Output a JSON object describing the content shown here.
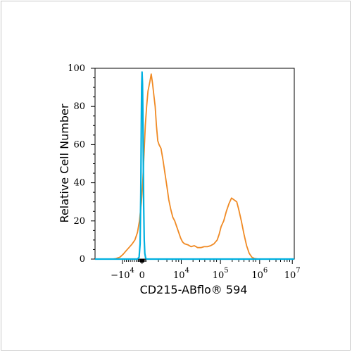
{
  "chart_data": {
    "type": "line",
    "title": "",
    "xlabel": "CD215-ABflo® 594",
    "ylabel": "Relative Cell Number",
    "ylim": [
      0,
      100
    ],
    "xscale": "biexponential",
    "y_ticks": [
      {
        "label": "100",
        "value": 100
      },
      {
        "label": "80",
        "value": 80
      },
      {
        "label": "60",
        "value": 60
      },
      {
        "label": "40",
        "value": 40
      },
      {
        "label": "20",
        "value": 20
      },
      {
        "label": "0",
        "value": 0
      }
    ],
    "x_ticks": [
      {
        "base": "−10",
        "exp": "4",
        "pos": -0.3
      },
      {
        "base": "0",
        "exp": "",
        "pos": 0.0
      },
      {
        "base": "10",
        "exp": "4",
        "pos": 0.6
      },
      {
        "base": "10",
        "exp": "5",
        "pos": 1.2
      },
      {
        "base": "10",
        "exp": "6",
        "pos": 1.8
      },
      {
        "base": "10",
        "exp": "7",
        "pos": 2.3
      }
    ],
    "xlim": [
      -0.72,
      2.33
    ],
    "legend": "none",
    "grid": false,
    "series": [
      {
        "color": "#00b0e0",
        "points": [
          [
            -0.72,
            0
          ],
          [
            -0.07,
            0
          ],
          [
            -0.045,
            1
          ],
          [
            -0.03,
            8
          ],
          [
            -0.02,
            35
          ],
          [
            -0.012,
            70
          ],
          [
            -0.006,
            90
          ],
          [
            0.0,
            98
          ],
          [
            0.006,
            92
          ],
          [
            0.012,
            78
          ],
          [
            0.018,
            55
          ],
          [
            0.025,
            28
          ],
          [
            0.033,
            10
          ],
          [
            0.042,
            3
          ],
          [
            0.055,
            0.5
          ],
          [
            0.07,
            0
          ],
          [
            2.33,
            0
          ]
        ]
      },
      {
        "color": "#f08a24",
        "points": [
          [
            -0.72,
            0
          ],
          [
            -0.45,
            0
          ],
          [
            -0.4,
            0.3
          ],
          [
            -0.34,
            1
          ],
          [
            -0.29,
            2.5
          ],
          [
            -0.24,
            4.5
          ],
          [
            -0.2,
            6
          ],
          [
            -0.15,
            8
          ],
          [
            -0.11,
            10
          ],
          [
            -0.07,
            14
          ],
          [
            -0.04,
            20
          ],
          [
            -0.01,
            30
          ],
          [
            0.01,
            40
          ],
          [
            0.03,
            55
          ],
          [
            0.05,
            70
          ],
          [
            0.07,
            80
          ],
          [
            0.09,
            88
          ],
          [
            0.12,
            93
          ],
          [
            0.14,
            97
          ],
          [
            0.16,
            92
          ],
          [
            0.18,
            86
          ],
          [
            0.2,
            80
          ],
          [
            0.22,
            70
          ],
          [
            0.24,
            62
          ],
          [
            0.26,
            60
          ],
          [
            0.29,
            58
          ],
          [
            0.32,
            52
          ],
          [
            0.35,
            45
          ],
          [
            0.38,
            38
          ],
          [
            0.41,
            31
          ],
          [
            0.44,
            26
          ],
          [
            0.47,
            22
          ],
          [
            0.5,
            20
          ],
          [
            0.53,
            17
          ],
          [
            0.56,
            14
          ],
          [
            0.59,
            11
          ],
          [
            0.62,
            9
          ],
          [
            0.65,
            8
          ],
          [
            0.7,
            7.5
          ],
          [
            0.75,
            6.5
          ],
          [
            0.8,
            7
          ],
          [
            0.85,
            6
          ],
          [
            0.9,
            6
          ],
          [
            0.95,
            6.5
          ],
          [
            1.0,
            6.5
          ],
          [
            1.05,
            7
          ],
          [
            1.1,
            8
          ],
          [
            1.15,
            10
          ],
          [
            1.18,
            13
          ],
          [
            1.21,
            17
          ],
          [
            1.25,
            20
          ],
          [
            1.29,
            25
          ],
          [
            1.33,
            29
          ],
          [
            1.37,
            32
          ],
          [
            1.41,
            31
          ],
          [
            1.45,
            30
          ],
          [
            1.48,
            26
          ],
          [
            1.52,
            20
          ],
          [
            1.56,
            13
          ],
          [
            1.6,
            7
          ],
          [
            1.64,
            3
          ],
          [
            1.68,
            1
          ],
          [
            1.72,
            0.3
          ],
          [
            1.78,
            0
          ],
          [
            2.33,
            0
          ]
        ]
      }
    ]
  }
}
